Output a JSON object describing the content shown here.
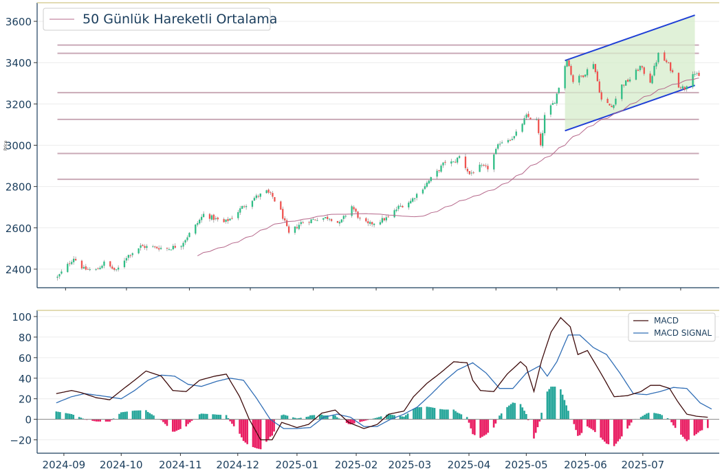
{
  "chart_data": [
    {
      "type": "candlestick",
      "ylabel": "Price",
      "ylim": [
        2310,
        3690
      ],
      "yticks": [
        "2400",
        "2600",
        "2800",
        "3000",
        "3200",
        "3400",
        "3600"
      ],
      "legend": {
        "label": "50 Günlük Hareketli Ortalama",
        "position": "top-left"
      },
      "grid": true,
      "colors": {
        "up": "#26a69a",
        "up_fill": "#2ebd85",
        "down": "#ef5350",
        "ma": "#b5678a",
        "level": "#c9a9b6",
        "channel": "#1f3fd6",
        "channel_fill": "#d5eccb"
      },
      "start_date": "2024-08-28",
      "start_close": 2360,
      "ma_period": 50,
      "horizontal_levels": [
        3485,
        3445,
        3255,
        3125,
        2960,
        2835
      ],
      "channel": {
        "start": "2025-05-05",
        "end": "2025-07-08",
        "upper": [
          3410,
          3630
        ],
        "lower": [
          3070,
          3290
        ]
      },
      "anchors": [
        [
          "2024-08-28",
          2360
        ],
        [
          "2024-09-05",
          2455
        ],
        [
          "2024-09-10",
          2400
        ],
        [
          "2024-09-16",
          2395
        ],
        [
          "2024-09-20",
          2430
        ],
        [
          "2024-09-26",
          2390
        ],
        [
          "2024-10-01",
          2460
        ],
        [
          "2024-10-08",
          2510
        ],
        [
          "2024-10-15",
          2505
        ],
        [
          "2024-10-22",
          2500
        ],
        [
          "2024-10-28",
          2520
        ],
        [
          "2024-11-04",
          2610
        ],
        [
          "2024-11-08",
          2665
        ],
        [
          "2024-11-12",
          2650
        ],
        [
          "2024-11-18",
          2625
        ],
        [
          "2024-11-22",
          2650
        ],
        [
          "2024-11-27",
          2700
        ],
        [
          "2024-12-03",
          2745
        ],
        [
          "2024-12-09",
          2775
        ],
        [
          "2024-12-12",
          2750
        ],
        [
          "2024-12-16",
          2680
        ],
        [
          "2024-12-20",
          2570
        ],
        [
          "2024-12-26",
          2625
        ],
        [
          "2025-01-03",
          2645
        ],
        [
          "2025-01-09",
          2650
        ],
        [
          "2025-01-14",
          2620
        ],
        [
          "2025-01-20",
          2705
        ],
        [
          "2025-01-24",
          2640
        ],
        [
          "2025-01-28",
          2615
        ],
        [
          "2025-02-03",
          2635
        ],
        [
          "2025-02-07",
          2650
        ],
        [
          "2025-02-12",
          2700
        ],
        [
          "2025-02-18",
          2730
        ],
        [
          "2025-02-24",
          2795
        ],
        [
          "2025-03-03",
          2870
        ],
        [
          "2025-03-07",
          2920
        ],
        [
          "2025-03-11",
          2915
        ],
        [
          "2025-03-14",
          2945
        ],
        [
          "2025-03-19",
          2860
        ],
        [
          "2025-03-24",
          2895
        ],
        [
          "2025-03-28",
          2890
        ],
        [
          "2025-04-03",
          3015
        ],
        [
          "2025-04-07",
          3030
        ],
        [
          "2025-04-10",
          3040
        ],
        [
          "2025-04-16",
          3140
        ],
        [
          "2025-04-21",
          3120
        ],
        [
          "2025-04-23",
          2990
        ],
        [
          "2025-04-25",
          3140
        ],
        [
          "2025-04-30",
          3215
        ],
        [
          "2025-05-06",
          3420
        ],
        [
          "2025-05-09",
          3310
        ],
        [
          "2025-05-14",
          3340
        ],
        [
          "2025-05-19",
          3400
        ],
        [
          "2025-05-23",
          3220
        ],
        [
          "2025-05-28",
          3185
        ],
        [
          "2025-06-02",
          3290
        ],
        [
          "2025-06-06",
          3320
        ],
        [
          "2025-06-11",
          3380
        ],
        [
          "2025-06-16",
          3310
        ],
        [
          "2025-06-20",
          3440
        ],
        [
          "2025-06-25",
          3390
        ],
        [
          "2025-06-30",
          3290
        ],
        [
          "2025-07-03",
          3275
        ],
        [
          "2025-07-07",
          3355
        ],
        [
          "2025-07-10",
          3330
        ]
      ],
      "x_ticks": [
        "2024-09",
        "2024-10",
        "2024-11",
        "2024-12",
        "2025-01",
        "2025-02",
        "2025-03",
        "2025-04",
        "2025-05",
        "2025-06",
        "2025-07"
      ],
      "x_range": [
        "2024-08-18",
        "2025-07-20"
      ]
    },
    {
      "type": "macd",
      "ylim": [
        -33,
        106
      ],
      "yticks": [
        "100",
        "80",
        "60",
        "40",
        "20",
        "0",
        "−20"
      ],
      "legend": {
        "entries": [
          "MACD",
          "MACD SIGNAL"
        ],
        "position": "top-right"
      },
      "colors": {
        "macd": "#3d0a0a",
        "signal": "#2f6db5",
        "hist_pos": "#26a69a",
        "hist_neg": "#e91e63"
      },
      "macd_anchors": [
        [
          "2024-08-28",
          25
        ],
        [
          "2024-09-05",
          28
        ],
        [
          "2024-09-10",
          26
        ],
        [
          "2024-09-18",
          21
        ],
        [
          "2024-09-25",
          19
        ],
        [
          "2024-10-01",
          28
        ],
        [
          "2024-10-08",
          38
        ],
        [
          "2024-10-14",
          47
        ],
        [
          "2024-10-22",
          42
        ],
        [
          "2024-10-28",
          28
        ],
        [
          "2024-11-04",
          27
        ],
        [
          "2024-11-11",
          38
        ],
        [
          "2024-11-19",
          42
        ],
        [
          "2024-11-25",
          44
        ],
        [
          "2024-12-02",
          22
        ],
        [
          "2024-12-07",
          0
        ],
        [
          "2024-12-13",
          -20
        ],
        [
          "2024-12-19",
          -20
        ],
        [
          "2024-12-24",
          -3
        ],
        [
          "2025-01-01",
          -8
        ],
        [
          "2025-01-07",
          -5
        ],
        [
          "2025-01-14",
          6
        ],
        [
          "2025-01-21",
          9
        ],
        [
          "2025-01-28",
          -3
        ],
        [
          "2025-02-05",
          -9
        ],
        [
          "2025-02-12",
          -5
        ],
        [
          "2025-02-18",
          5
        ],
        [
          "2025-02-26",
          8
        ],
        [
          "2025-03-03",
          22
        ],
        [
          "2025-03-10",
          35
        ],
        [
          "2025-03-17",
          45
        ],
        [
          "2025-03-24",
          56
        ],
        [
          "2025-03-31",
          55
        ],
        [
          "2025-04-03",
          38
        ],
        [
          "2025-04-07",
          28
        ],
        [
          "2025-04-14",
          27
        ],
        [
          "2025-04-21",
          44
        ],
        [
          "2025-04-28",
          56
        ],
        [
          "2025-05-01",
          51
        ],
        [
          "2025-05-05",
          27
        ],
        [
          "2025-05-09",
          57
        ],
        [
          "2025-05-14",
          85
        ],
        [
          "2025-05-19",
          99
        ],
        [
          "2025-05-24",
          90
        ],
        [
          "2025-05-28",
          63
        ],
        [
          "2025-06-02",
          67
        ],
        [
          "2025-06-09",
          45
        ],
        [
          "2025-06-16",
          22
        ],
        [
          "2025-06-23",
          23
        ],
        [
          "2025-06-30",
          27
        ],
        [
          "2025-07-05",
          33
        ],
        [
          "2025-07-10",
          33
        ],
        [
          "2025-07-15",
          30
        ],
        [
          "2025-07-19",
          18
        ],
        [
          "2025-07-24",
          5
        ],
        [
          "2025-07-29",
          3
        ],
        [
          "2025-08-04",
          2
        ]
      ],
      "signal_anchors": [
        [
          "2024-08-28",
          16
        ],
        [
          "2024-09-05",
          22
        ],
        [
          "2024-09-12",
          25
        ],
        [
          "2024-09-20",
          23
        ],
        [
          "2024-10-01",
          20
        ],
        [
          "2024-10-08",
          28
        ],
        [
          "2024-10-15",
          38
        ],
        [
          "2024-10-22",
          43
        ],
        [
          "2024-10-29",
          42
        ],
        [
          "2024-11-05",
          34
        ],
        [
          "2024-11-12",
          32
        ],
        [
          "2024-11-20",
          37
        ],
        [
          "2024-11-27",
          40
        ],
        [
          "2024-12-04",
          38
        ],
        [
          "2024-12-11",
          20
        ],
        [
          "2024-12-18",
          0
        ],
        [
          "2024-12-25",
          -9
        ],
        [
          "2025-01-01",
          -9
        ],
        [
          "2025-01-08",
          -8
        ],
        [
          "2025-01-15",
          2
        ],
        [
          "2025-01-22",
          5
        ],
        [
          "2025-01-29",
          2
        ],
        [
          "2025-02-05",
          -7
        ],
        [
          "2025-02-12",
          -7
        ],
        [
          "2025-02-19",
          0
        ],
        [
          "2025-02-26",
          5
        ],
        [
          "2025-03-05",
          12
        ],
        [
          "2025-03-12",
          24
        ],
        [
          "2025-03-19",
          37
        ],
        [
          "2025-03-26",
          48
        ],
        [
          "2025-04-03",
          55
        ],
        [
          "2025-04-10",
          45
        ],
        [
          "2025-04-17",
          30
        ],
        [
          "2025-04-24",
          30
        ],
        [
          "2025-05-01",
          45
        ],
        [
          "2025-05-08",
          52
        ],
        [
          "2025-05-12",
          42
        ],
        [
          "2025-05-17",
          56
        ],
        [
          "2025-05-23",
          82
        ],
        [
          "2025-05-29",
          82
        ],
        [
          "2025-06-05",
          70
        ],
        [
          "2025-06-12",
          63
        ],
        [
          "2025-06-19",
          45
        ],
        [
          "2025-06-26",
          25
        ],
        [
          "2025-07-03",
          24
        ],
        [
          "2025-07-10",
          27
        ],
        [
          "2025-07-17",
          31
        ],
        [
          "2025-07-24",
          30
        ],
        [
          "2025-07-31",
          16
        ],
        [
          "2025-08-06",
          10
        ]
      ],
      "x_ticks": [
        "2024-09",
        "2024-10",
        "2024-11",
        "2024-12",
        "2025-01",
        "2025-02",
        "2025-03",
        "2025-04",
        "2025-05",
        "2025-06",
        "2025-07"
      ],
      "x_range": [
        "2024-08-18",
        "2025-08-10"
      ]
    }
  ]
}
